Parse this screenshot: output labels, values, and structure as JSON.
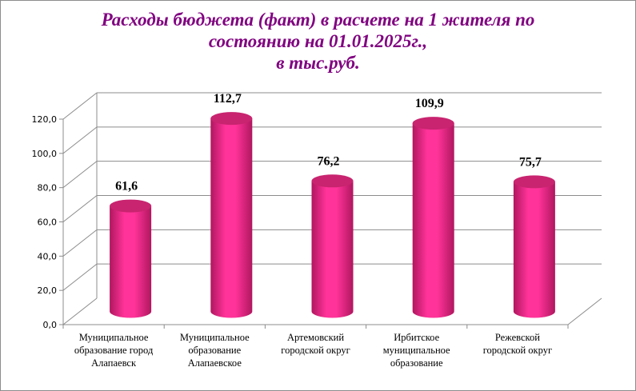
{
  "chart_data": {
    "type": "bar",
    "style": "3d-cylinder",
    "title_lines": [
      "Расходы бюджета (факт) в расчете на 1 жителя по",
      "состоянию на 01.01.2025г.,",
      "в тыс.руб."
    ],
    "categories": [
      [
        "Муниципальное",
        "образование город",
        "Алапаевск"
      ],
      [
        "Муниципальное",
        "образование",
        "Алапаевское"
      ],
      [
        "Артемовский",
        "городской округ"
      ],
      [
        "Ирбитское",
        "муниципальное",
        "образование"
      ],
      [
        "Режевской",
        "городской округ"
      ]
    ],
    "values": [
      61.6,
      112.7,
      76.2,
      109.9,
      75.7
    ],
    "data_labels": [
      "61,6",
      "112,7",
      "76,2",
      "109,9",
      "75,7"
    ],
    "y_ticks": [
      "0,0",
      "20,0",
      "40,0",
      "60,0",
      "80,0",
      "100,0",
      "120,0"
    ],
    "ylim": [
      0,
      120
    ],
    "grid": true,
    "legend": "none",
    "colors": {
      "bar": "#ff3399",
      "bar_dark": "#b0175f",
      "title": "#800080",
      "grid": "#8c8c8c"
    }
  }
}
